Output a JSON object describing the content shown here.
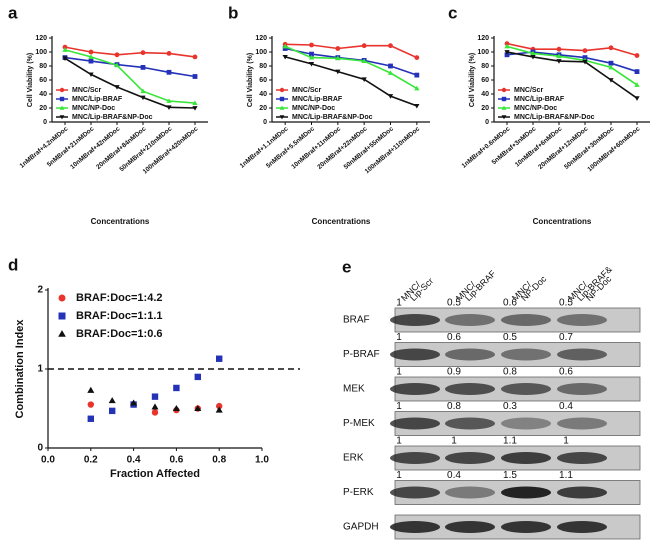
{
  "chart_data": [
    {
      "type": "line",
      "panel": "a",
      "xlabel": "Concentrations",
      "ylabel": "Cell Viability (%)",
      "categories": [
        "1nMBraf+4.2nMDoc",
        "5nMBraf+21nMDoc",
        "10nMBraf+42nMDoc",
        "20nMBraf+84nMDoc",
        "50nMBraf+210nMDoc",
        "100nMBraf+420nMDoc"
      ],
      "ylim": [
        0,
        120
      ],
      "yticks": [
        0,
        20,
        40,
        60,
        80,
        100,
        120
      ],
      "series": [
        {
          "name": "MNC/Scr",
          "color": "#e8342c",
          "marker": "circle",
          "values": [
            107,
            100,
            96,
            99,
            98,
            93
          ]
        },
        {
          "name": "MNC/Lip-BRAF",
          "color": "#2432b8",
          "marker": "square",
          "values": [
            92,
            87,
            82,
            78,
            71,
            65
          ]
        },
        {
          "name": "MNC/NP-Doc",
          "color": "#37e637",
          "marker": "triangle",
          "values": [
            103,
            93,
            81,
            44,
            30,
            27
          ]
        },
        {
          "name": "MNC/Lip-BRAF&NP-Doc",
          "color": "#111111",
          "marker": "down",
          "values": [
            91,
            68,
            50,
            35,
            21,
            20
          ]
        }
      ]
    },
    {
      "type": "line",
      "panel": "b",
      "xlabel": "Concentrations",
      "ylabel": "Cell Viability (%)",
      "categories": [
        "1nMBraf+1.1nMDoc",
        "5nMBraf+5.5nMDoc",
        "10nMBraf+11nMDoc",
        "20nMBraf+22nMDoc",
        "50nMBraf+55nMDoc",
        "100nMBraf+110nMDoc"
      ],
      "ylim": [
        0,
        120
      ],
      "yticks": [
        0,
        20,
        40,
        60,
        80,
        100,
        120
      ],
      "series": [
        {
          "name": "MNC/Scr",
          "color": "#e8342c",
          "marker": "circle",
          "values": [
            111,
            110,
            105,
            109,
            109,
            92
          ]
        },
        {
          "name": "MNC/Lip-BRAF",
          "color": "#2432b8",
          "marker": "square",
          "values": [
            105,
            97,
            92,
            88,
            80,
            67
          ]
        },
        {
          "name": "MNC/NP-Doc",
          "color": "#37e637",
          "marker": "triangle",
          "values": [
            108,
            92,
            91,
            87,
            70,
            48
          ]
        },
        {
          "name": "MNC/Lip-BRAF&NP-Doc",
          "color": "#111111",
          "marker": "down",
          "values": [
            93,
            83,
            72,
            61,
            37,
            23
          ]
        }
      ]
    },
    {
      "type": "line",
      "panel": "c",
      "xlabel": "Concentrations",
      "ylabel": "Cell Viability (%)",
      "categories": [
        "1nMBraf+0.6nMDoc",
        "5nMBraf+3nMDoc",
        "10nMBraf+6nMDoc",
        "20nMBraf+12nMDoc",
        "50nMBraf+30nMDoc",
        "100nMBraf+60nMDoc"
      ],
      "ylim": [
        0,
        120
      ],
      "yticks": [
        0,
        20,
        40,
        60,
        80,
        100,
        120
      ],
      "series": [
        {
          "name": "MNC/Scr",
          "color": "#e8342c",
          "marker": "circle",
          "values": [
            112,
            104,
            104,
            102,
            106,
            95
          ]
        },
        {
          "name": "MNC/Lip-BRAF",
          "color": "#2432b8",
          "marker": "square",
          "values": [
            96,
            100,
            96,
            92,
            84,
            72
          ]
        },
        {
          "name": "MNC/NP-Doc",
          "color": "#37e637",
          "marker": "triangle",
          "values": [
            108,
            98,
            94,
            88,
            78,
            53
          ]
        },
        {
          "name": "MNC/Lip-BRAF&NP-Doc",
          "color": "#111111",
          "marker": "down",
          "values": [
            100,
            93,
            87,
            86,
            60,
            34
          ]
        }
      ]
    },
    {
      "type": "scatter",
      "panel": "d",
      "xlabel": "Fraction Affected",
      "ylabel": "Combination Index",
      "xlim": [
        0,
        1
      ],
      "xticks": [
        {
          "value": 0,
          "label": "0.0"
        },
        {
          "value": 0.2,
          "label": "0.2"
        },
        {
          "value": 0.4,
          "label": "0.4"
        },
        {
          "value": 0.6,
          "label": "0.6"
        },
        {
          "value": 0.8,
          "label": "0.8"
        },
        {
          "value": 1,
          "label": "1.0"
        }
      ],
      "ylim": [
        0,
        2
      ],
      "yticks": [
        0,
        1,
        2
      ],
      "reference_line": 1,
      "series": [
        {
          "name": "BRAF:Doc=1:4.2",
          "color": "#e8342c",
          "marker": "circle",
          "x": [
            0.2,
            0.5,
            0.6,
            0.7,
            0.8
          ],
          "values": [
            0.55,
            0.45,
            0.48,
            0.5,
            0.53
          ]
        },
        {
          "name": "BRAF:Doc=1:1.1",
          "color": "#2432b8",
          "marker": "square",
          "x": [
            0.2,
            0.3,
            0.4,
            0.5,
            0.6,
            0.7,
            0.8
          ],
          "values": [
            0.37,
            0.47,
            0.55,
            0.65,
            0.76,
            0.9,
            1.13
          ]
        },
        {
          "name": "BRAF:Doc=1:0.6",
          "color": "#111111",
          "marker": "triangle",
          "x": [
            0.2,
            0.3,
            0.4,
            0.5,
            0.6,
            0.7,
            0.8
          ],
          "values": [
            0.73,
            0.6,
            0.57,
            0.52,
            0.5,
            0.5,
            0.48
          ]
        }
      ]
    }
  ],
  "blot": {
    "panel": "e",
    "columns": [
      [
        "MNC/",
        "Lip-Scr"
      ],
      [
        "MNC/",
        "Lip-BRAF"
      ],
      [
        "MNC/",
        "NP-Doc"
      ],
      [
        "MNC/",
        "Lip-BRAF&",
        "NP-Doc"
      ]
    ],
    "rows": [
      {
        "label": "BRAF",
        "values": [
          1,
          0.5,
          0.6,
          0.5
        ]
      },
      {
        "label": "P-BRAF",
        "values": [
          1,
          0.6,
          0.5,
          0.7
        ]
      },
      {
        "label": "MEK",
        "values": [
          1,
          0.9,
          0.8,
          0.6
        ]
      },
      {
        "label": "P-MEK",
        "values": [
          1,
          0.8,
          0.3,
          0.4
        ]
      },
      {
        "label": "ERK",
        "values": [
          1,
          1,
          1.1,
          1
        ]
      },
      {
        "label": "P-ERK",
        "values": [
          1,
          0.4,
          1.5,
          1.1
        ]
      },
      {
        "label": "GAPDH"
      }
    ]
  }
}
